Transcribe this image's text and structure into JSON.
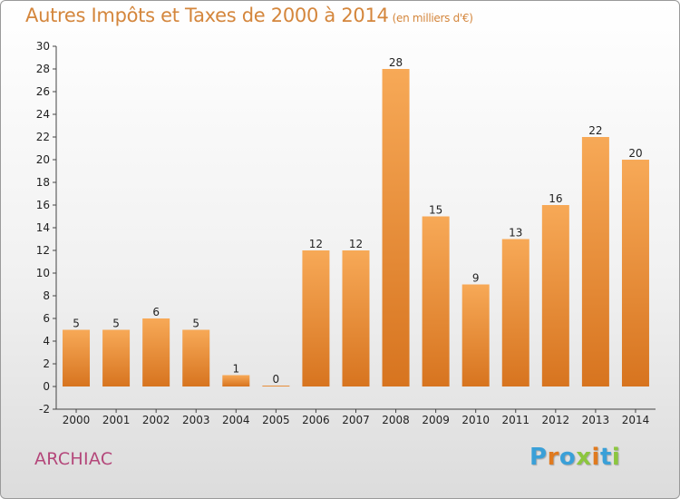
{
  "title": "Autres Impôts et Taxes de 2000 à 2014",
  "unit": "(en milliers d'€)",
  "commune": "ARCHIAC",
  "logo": {
    "letters": [
      "P",
      "r",
      "o",
      "x",
      "i",
      "t",
      "i"
    ],
    "colors": [
      "#3aa0d8",
      "#e07a1f",
      "#3aa0d8",
      "#8cc63f",
      "#e07a1f",
      "#3aa0d8",
      "#8cc63f"
    ]
  },
  "colors": {
    "bar_light": "#f7a957",
    "bar_dark": "#d7741f",
    "title": "#d4863c",
    "commune": "#b4477a"
  },
  "chart_data": {
    "type": "bar",
    "categories": [
      "2000",
      "2001",
      "2002",
      "2003",
      "2004",
      "2005",
      "2006",
      "2007",
      "2008",
      "2009",
      "2010",
      "2011",
      "2012",
      "2013",
      "2014"
    ],
    "values": [
      5,
      5,
      6,
      5,
      1,
      0,
      12,
      12,
      28,
      15,
      9,
      13,
      16,
      22,
      20
    ],
    "ylim": [
      -2,
      30
    ],
    "yticks": [
      -2,
      0,
      2,
      4,
      6,
      8,
      10,
      12,
      14,
      16,
      18,
      20,
      22,
      24,
      26,
      28,
      30
    ],
    "grid": false
  }
}
